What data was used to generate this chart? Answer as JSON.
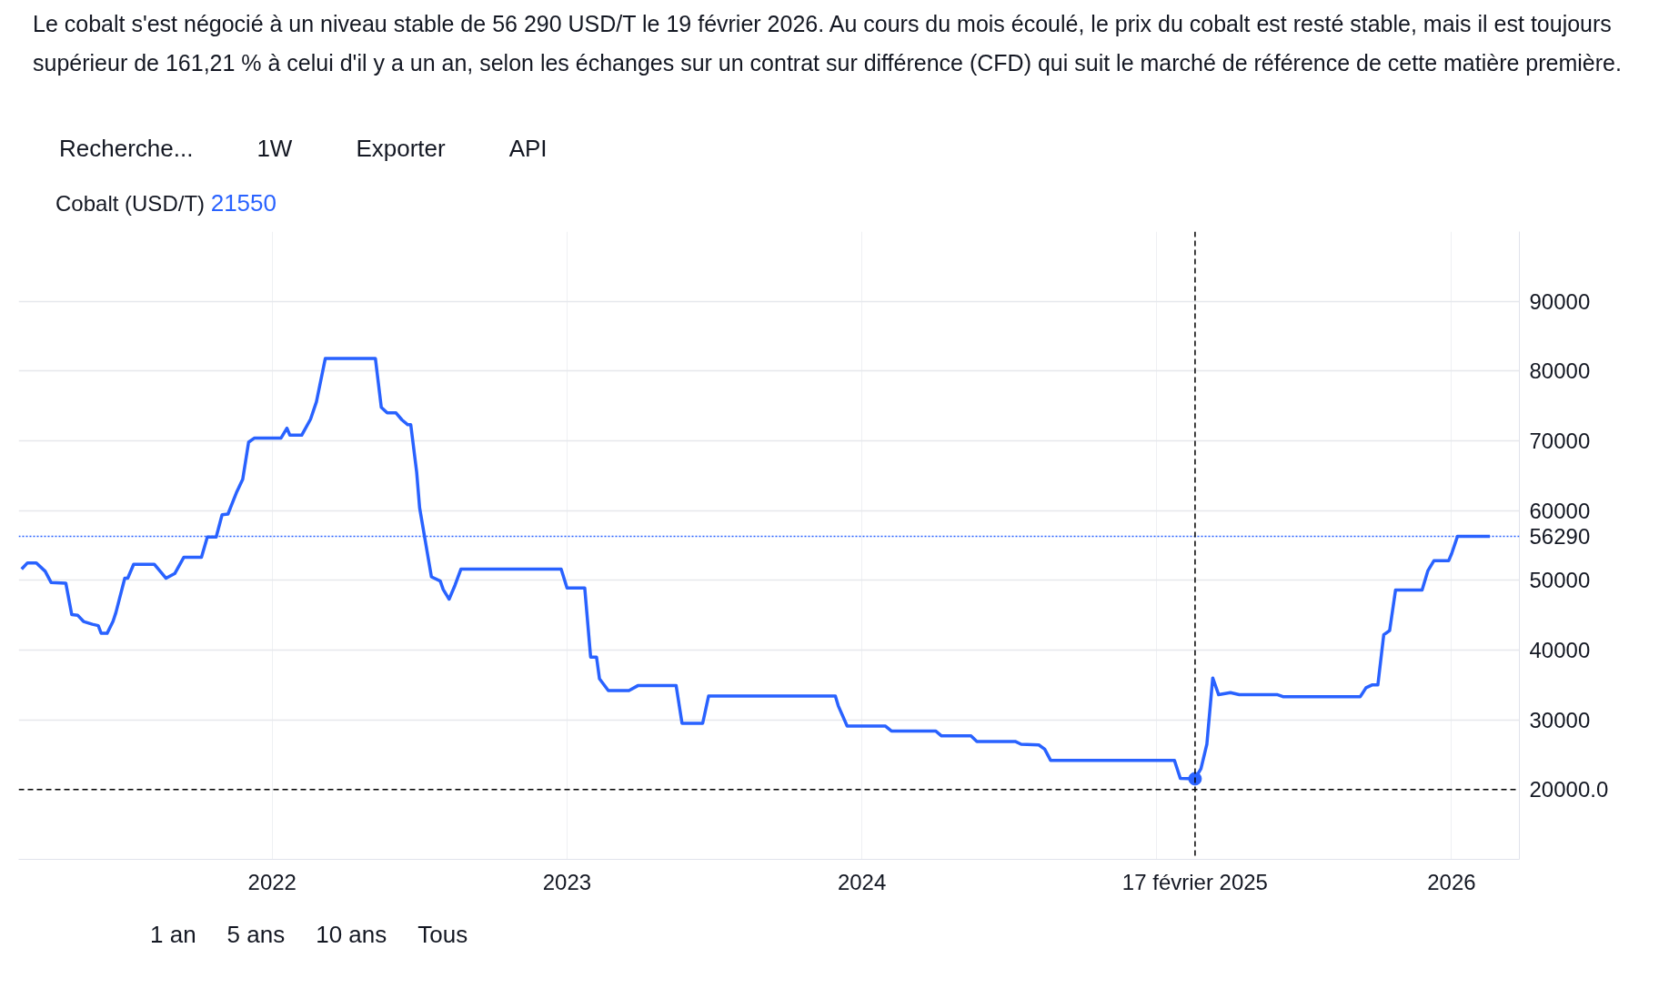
{
  "chart_data": {
    "type": "line",
    "title": "Cobalt (USD/T)",
    "subtitle": "Le cobalt s'est négocié à un niveau stable de 56 290 USD/T le 19 février 2026. Au cours du mois écoulé, le prix du cobalt est resté stable, mais il est toujours supérieur de 161,21 % à celui d'il y a un an, selon les échanges sur un contrat sur différence (CFD) qui suit le marché de référence de cette matière première.",
    "x": [
      2021.15,
      2021.17,
      2021.2,
      2021.23,
      2021.25,
      2021.3,
      2021.32,
      2021.34,
      2021.36,
      2021.39,
      2021.41,
      2021.42,
      2021.44,
      2021.46,
      2021.47,
      2021.5,
      2021.51,
      2021.53,
      2021.6,
      2021.64,
      2021.67,
      2021.7,
      2021.76,
      2021.78,
      2021.81,
      2021.83,
      2021.85,
      2021.88,
      2021.9,
      2021.92,
      2021.94,
      2022.03,
      2022.05,
      2022.06,
      2022.1,
      2022.13,
      2022.15,
      2022.18,
      2022.35,
      2022.37,
      2022.39,
      2022.42,
      2022.44,
      2022.46,
      2022.47,
      2022.49,
      2022.5,
      2022.54,
      2022.57,
      2022.58,
      2022.6,
      2022.62,
      2022.64,
      2022.98,
      2023.0,
      2023.06,
      2023.08,
      2023.1,
      2023.11,
      2023.14,
      2023.21,
      2023.24,
      2023.37,
      2023.39,
      2023.46,
      2023.48,
      2023.91,
      2023.92,
      2023.95,
      2024.08,
      2024.1,
      2024.25,
      2024.27,
      2024.37,
      2024.39,
      2024.52,
      2024.54,
      2024.6,
      2024.62,
      2024.64,
      2025.06,
      2025.08,
      2025.13,
      2025.15,
      2025.17,
      2025.19,
      2025.21,
      2025.25,
      2025.28,
      2025.41,
      2025.43,
      2025.69,
      2025.71,
      2025.73,
      2025.75,
      2025.77,
      2025.79,
      2025.81,
      2025.9,
      2025.92,
      2025.94,
      2025.99,
      2026.0,
      2026.02,
      2026.13
    ],
    "series": [
      {
        "color": "#2962ff",
        "values": [
          51600,
          52500,
          52500,
          51300,
          49700,
          49600,
          45100,
          45000,
          44100,
          43700,
          43500,
          42400,
          42400,
          44100,
          45400,
          50300,
          50300,
          52300,
          52300,
          50300,
          51000,
          53300,
          53300,
          56200,
          56200,
          59400,
          59500,
          62700,
          64500,
          69800,
          70400,
          70400,
          71800,
          70800,
          70800,
          73100,
          75600,
          81800,
          81800,
          74800,
          74000,
          74000,
          73000,
          72300,
          72300,
          65500,
          60400,
          50500,
          49900,
          48700,
          47300,
          49300,
          51600,
          51600,
          48900,
          48900,
          39000,
          39000,
          35900,
          34200,
          34200,
          34900,
          34900,
          29500,
          29500,
          33400,
          33400,
          32000,
          29100,
          29100,
          28400,
          28400,
          27700,
          27700,
          26900,
          26900,
          26500,
          26400,
          25800,
          24200,
          24200,
          21600,
          21550,
          23000,
          26500,
          36000,
          33600,
          33900,
          33600,
          33600,
          33300,
          33300,
          34600,
          35000,
          35000,
          42200,
          42800,
          48600,
          48600,
          51400,
          52800,
          52800,
          53800,
          56290,
          56290
        ]
      }
    ],
    "xlim": [
      2021.14,
      2026.23
    ],
    "ylim": [
      10000,
      100000
    ],
    "xticks": [
      2022,
      2023,
      2024,
      {
        "value": 2025,
        "label": null
      },
      2026
    ],
    "yticks": [
      30000,
      40000,
      50000,
      60000,
      70000,
      80000,
      90000
    ],
    "grid": true,
    "marker": "none",
    "line_style": "solid",
    "ref_lines": [
      {
        "axis": "y",
        "value": 56290,
        "label": "56290",
        "color": "#2962ff",
        "line_style": "dotted"
      },
      {
        "axis": "y",
        "value": 20000,
        "label": "20000.0",
        "color": "#000000",
        "line_style": "dashed"
      },
      {
        "axis": "x",
        "value": 2025.13,
        "label": "17 février 2025",
        "color": "#000000",
        "line_style": "dashed"
      }
    ],
    "annotations": [
      "21550",
      "Recherche...",
      "1W",
      "Exporter",
      "API",
      "1 an",
      "5 ans",
      "10 ans",
      "Tous"
    ]
  }
}
